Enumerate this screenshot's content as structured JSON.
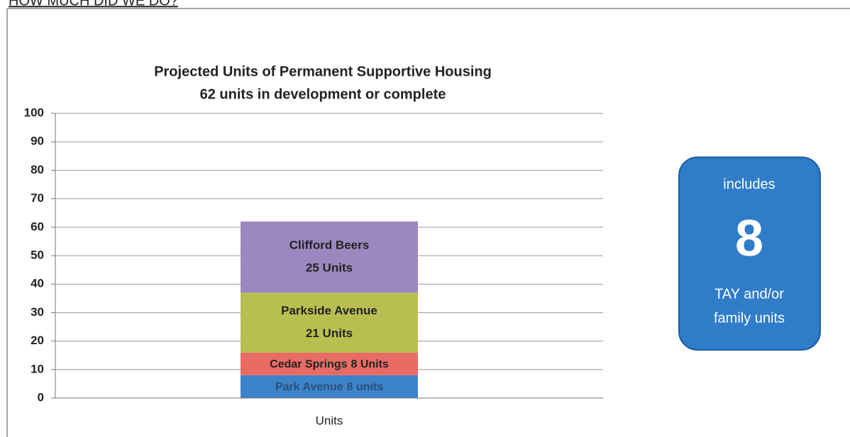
{
  "header": "HOW MUCH DID WE DO?",
  "chart_data": {
    "type": "stacked-bar",
    "title": [
      "Projected Units of Permanent Supportive Housing",
      "62 units in development or complete"
    ],
    "categories": [
      "Units"
    ],
    "series": [
      {
        "name": "Park Avenue",
        "color": "#3d83c8",
        "values": [
          8
        ],
        "value_labels": [
          "8 units"
        ]
      },
      {
        "name": "Cedar Springs",
        "color": "#e86c64",
        "values": [
          8
        ],
        "value_labels": [
          "8 Units"
        ]
      },
      {
        "name": "Parkside Avenue",
        "color": "#b8bf50",
        "values": [
          21
        ],
        "value_labels": [
          "21 Units"
        ]
      },
      {
        "name": "Clifford Beers",
        "color": "#9c88be",
        "values": [
          25
        ],
        "value_labels": [
          "25 Units"
        ]
      }
    ],
    "ylim": [
      0,
      100
    ],
    "yticks": [
      0,
      10,
      20,
      30,
      40,
      50,
      60,
      70,
      80,
      90,
      100
    ],
    "grid": true
  },
  "annotation": {
    "top": "includes",
    "value": "8",
    "bottom": [
      "TAY and/or",
      "family units"
    ]
  }
}
